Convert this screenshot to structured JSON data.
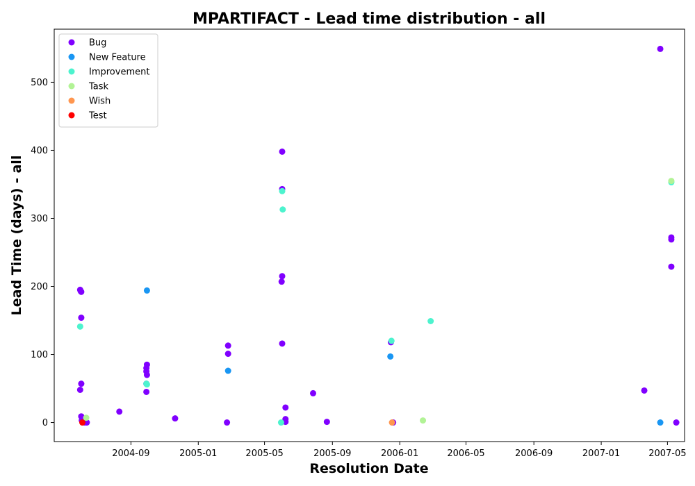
{
  "chart_data": {
    "type": "scatter",
    "title": "MPARTIFACT - Lead time distribution - all",
    "xlabel": "Resolution Date",
    "ylabel": "Lead Time (days) - all",
    "xlim": [
      "2004-04-15",
      "2007-06-01"
    ],
    "ylim": [
      -28,
      578
    ],
    "x_ticks": [
      "2004-09",
      "2005-01",
      "2005-05",
      "2005-09",
      "2006-01",
      "2006-05",
      "2006-09",
      "2007-01",
      "2007-05"
    ],
    "y_ticks": [
      0,
      100,
      200,
      300,
      400,
      500
    ],
    "grid": false,
    "legend_position": "upper-left",
    "series": [
      {
        "name": "Bug",
        "color": "#8000ff",
        "points": [
          {
            "x": "2004-06-01",
            "y": 195
          },
          {
            "x": "2004-06-02",
            "y": 193
          },
          {
            "x": "2004-06-03",
            "y": 192
          },
          {
            "x": "2004-06-03",
            "y": 154
          },
          {
            "x": "2004-06-03",
            "y": 57
          },
          {
            "x": "2004-06-01",
            "y": 48
          },
          {
            "x": "2004-06-03",
            "y": 9
          },
          {
            "x": "2004-06-04",
            "y": 3
          },
          {
            "x": "2004-06-06",
            "y": 1
          },
          {
            "x": "2004-06-09",
            "y": 0
          },
          {
            "x": "2004-06-13",
            "y": 0
          },
          {
            "x": "2004-08-11",
            "y": 16
          },
          {
            "x": "2004-09-30",
            "y": 85
          },
          {
            "x": "2004-09-29",
            "y": 80
          },
          {
            "x": "2004-09-29",
            "y": 75
          },
          {
            "x": "2004-09-30",
            "y": 70
          },
          {
            "x": "2004-09-29",
            "y": 57
          },
          {
            "x": "2004-09-29",
            "y": 45
          },
          {
            "x": "2004-11-20",
            "y": 6
          },
          {
            "x": "2005-02-24",
            "y": 113
          },
          {
            "x": "2005-02-24",
            "y": 101
          },
          {
            "x": "2005-02-22",
            "y": 0
          },
          {
            "x": "2005-06-02",
            "y": 398
          },
          {
            "x": "2005-06-02",
            "y": 343
          },
          {
            "x": "2005-06-02",
            "y": 215
          },
          {
            "x": "2005-06-01",
            "y": 207
          },
          {
            "x": "2005-06-02",
            "y": 116
          },
          {
            "x": "2005-06-08",
            "y": 22
          },
          {
            "x": "2005-06-08",
            "y": 5
          },
          {
            "x": "2005-06-08",
            "y": 1
          },
          {
            "x": "2005-07-28",
            "y": 43
          },
          {
            "x": "2005-08-22",
            "y": 1
          },
          {
            "x": "2005-12-16",
            "y": 118
          },
          {
            "x": "2005-12-20",
            "y": 0
          },
          {
            "x": "2007-03-20",
            "y": 47
          },
          {
            "x": "2007-04-18",
            "y": 549
          },
          {
            "x": "2007-05-08",
            "y": 272
          },
          {
            "x": "2007-05-08",
            "y": 269
          },
          {
            "x": "2007-05-08",
            "y": 229
          },
          {
            "x": "2007-05-17",
            "y": 0
          }
        ]
      },
      {
        "name": "New Feature",
        "color": "#1996f3",
        "points": [
          {
            "x": "2004-09-30",
            "y": 194
          },
          {
            "x": "2005-02-24",
            "y": 76
          },
          {
            "x": "2005-12-15",
            "y": 97
          },
          {
            "x": "2007-04-18",
            "y": 0
          }
        ]
      },
      {
        "name": "Improvement",
        "color": "#4df3ce",
        "points": [
          {
            "x": "2004-06-01",
            "y": 141
          },
          {
            "x": "2004-09-29",
            "y": 57
          },
          {
            "x": "2004-09-30",
            "y": 56
          },
          {
            "x": "2005-06-02",
            "y": 340
          },
          {
            "x": "2005-06-03",
            "y": 313
          },
          {
            "x": "2005-05-31",
            "y": 0
          },
          {
            "x": "2005-12-17",
            "y": 120
          },
          {
            "x": "2006-02-26",
            "y": 149
          },
          {
            "x": "2007-05-08",
            "y": 353
          }
        ]
      },
      {
        "name": "Task",
        "color": "#b2f396",
        "points": [
          {
            "x": "2004-06-12",
            "y": 7
          },
          {
            "x": "2006-02-12",
            "y": 3
          },
          {
            "x": "2007-05-08",
            "y": 355
          }
        ]
      },
      {
        "name": "Wish",
        "color": "#ff964f",
        "points": [
          {
            "x": "2005-12-18",
            "y": 0
          }
        ]
      },
      {
        "name": "Test",
        "color": "#ff0000",
        "points": [
          {
            "x": "2004-06-05",
            "y": 0
          }
        ]
      }
    ]
  }
}
